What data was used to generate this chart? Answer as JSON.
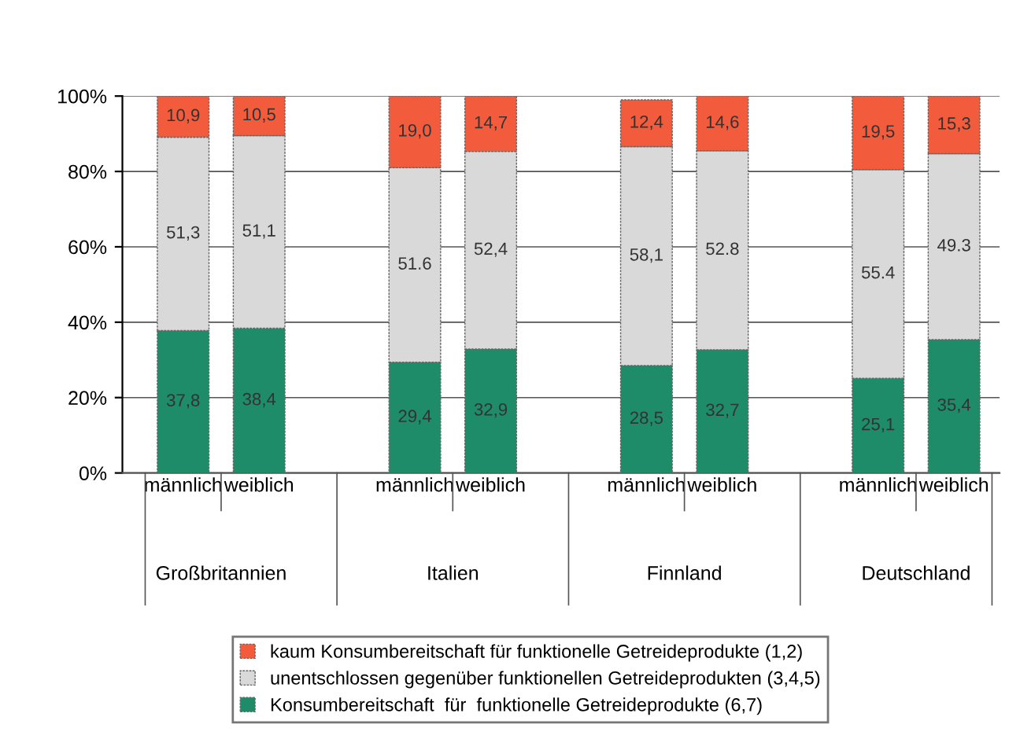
{
  "chart_data": {
    "type": "bar",
    "stacked": true,
    "categories": [
      "männlich",
      "weiblich",
      "männlich",
      "weiblich",
      "männlich",
      "weiblich",
      "männlich",
      "weiblich"
    ],
    "series": [
      {
        "name": "Konsumbereitschaft  für  funktionelle Getreideprodukte (6,7)",
        "color": "#1e8c68",
        "values": [
          37.8,
          38.4,
          29.4,
          32.9,
          28.5,
          32.7,
          25.1,
          35.4
        ],
        "value_labels": [
          "37,8",
          "38,4",
          "29,4",
          "32,9",
          "28,5",
          "32,7",
          "25,1",
          "35,4"
        ]
      },
      {
        "name": "unentschlossen gegenüber funktionellen Getreideprodukten (3,4,5)",
        "color": "#d9d9d9",
        "values": [
          51.3,
          51.1,
          51.6,
          52.4,
          58.1,
          52.8,
          55.4,
          49.3
        ],
        "value_labels": [
          "51,3",
          "51,1",
          "51.6",
          "52,4",
          "58,1",
          "52.8",
          "55.4",
          "49.3"
        ]
      },
      {
        "name": "kaum Konsumbereitschaft für funktionelle Getreideprodukte (1,2)",
        "color": "#f25c3c",
        "values": [
          10.9,
          10.5,
          19.0,
          14.7,
          12.4,
          14.6,
          19.5,
          15.3
        ],
        "value_labels": [
          "10,9",
          "10,5",
          "19,0",
          "14,7",
          "12,4",
          "14,6",
          "19,5",
          "15,3"
        ]
      }
    ],
    "annotations": [
      "Großbritannien",
      "Italien",
      "Finnland",
      "Deutschland"
    ],
    "ylim": [
      0,
      100
    ],
    "yticks": [
      {
        "value": 0,
        "label": "0%"
      },
      {
        "value": 20,
        "label": "20%"
      },
      {
        "value": 40,
        "label": "40%"
      },
      {
        "value": 60,
        "label": "60%"
      },
      {
        "value": 80,
        "label": "80%"
      },
      {
        "value": 100,
        "label": "100%"
      }
    ],
    "grid": "y",
    "legend": "bottom"
  }
}
